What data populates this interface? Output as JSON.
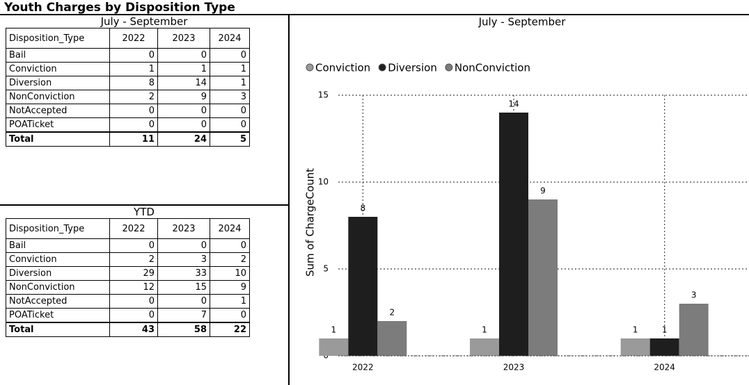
{
  "title": "Youth Charges by Disposition Type",
  "tables": [
    {
      "title": "July - September",
      "columns": [
        "Disposition_Type",
        "2022",
        "2023",
        "2024"
      ],
      "rows": [
        [
          "Bail",
          0,
          0,
          0
        ],
        [
          "Conviction",
          1,
          1,
          1
        ],
        [
          "Diversion",
          8,
          14,
          1
        ],
        [
          "NonConviction",
          2,
          9,
          3
        ],
        [
          "NotAccepted",
          0,
          0,
          0
        ],
        [
          "POATicket",
          0,
          0,
          0
        ]
      ],
      "total": [
        "Total",
        11,
        24,
        5
      ]
    },
    {
      "title": "YTD",
      "columns": [
        "Disposition_Type",
        "2022",
        "2023",
        "2024"
      ],
      "rows": [
        [
          "Bail",
          0,
          0,
          0
        ],
        [
          "Conviction",
          2,
          3,
          2
        ],
        [
          "Diversion",
          29,
          33,
          10
        ],
        [
          "NonConviction",
          12,
          15,
          9
        ],
        [
          "NotAccepted",
          0,
          0,
          1
        ],
        [
          "POATicket",
          0,
          7,
          0
        ]
      ],
      "total": [
        "Total",
        43,
        58,
        22
      ]
    }
  ],
  "chart_data": {
    "type": "bar",
    "title": "July - September",
    "y_label": "Sum of ChargeCount",
    "categories": [
      "2022",
      "2023",
      "2024"
    ],
    "series": [
      {
        "name": "Conviction",
        "color": "#9a9a9a",
        "values": [
          1,
          1,
          1
        ]
      },
      {
        "name": "Diversion",
        "color": "#1e1e1e",
        "values": [
          8,
          14,
          1
        ]
      },
      {
        "name": "NonConviction",
        "color": "#7c7c7c",
        "values": [
          2,
          9,
          3
        ]
      }
    ],
    "ylim": [
      0,
      15
    ],
    "yticks": [
      0,
      5,
      10,
      15
    ],
    "grid": true,
    "data_labels": true
  }
}
